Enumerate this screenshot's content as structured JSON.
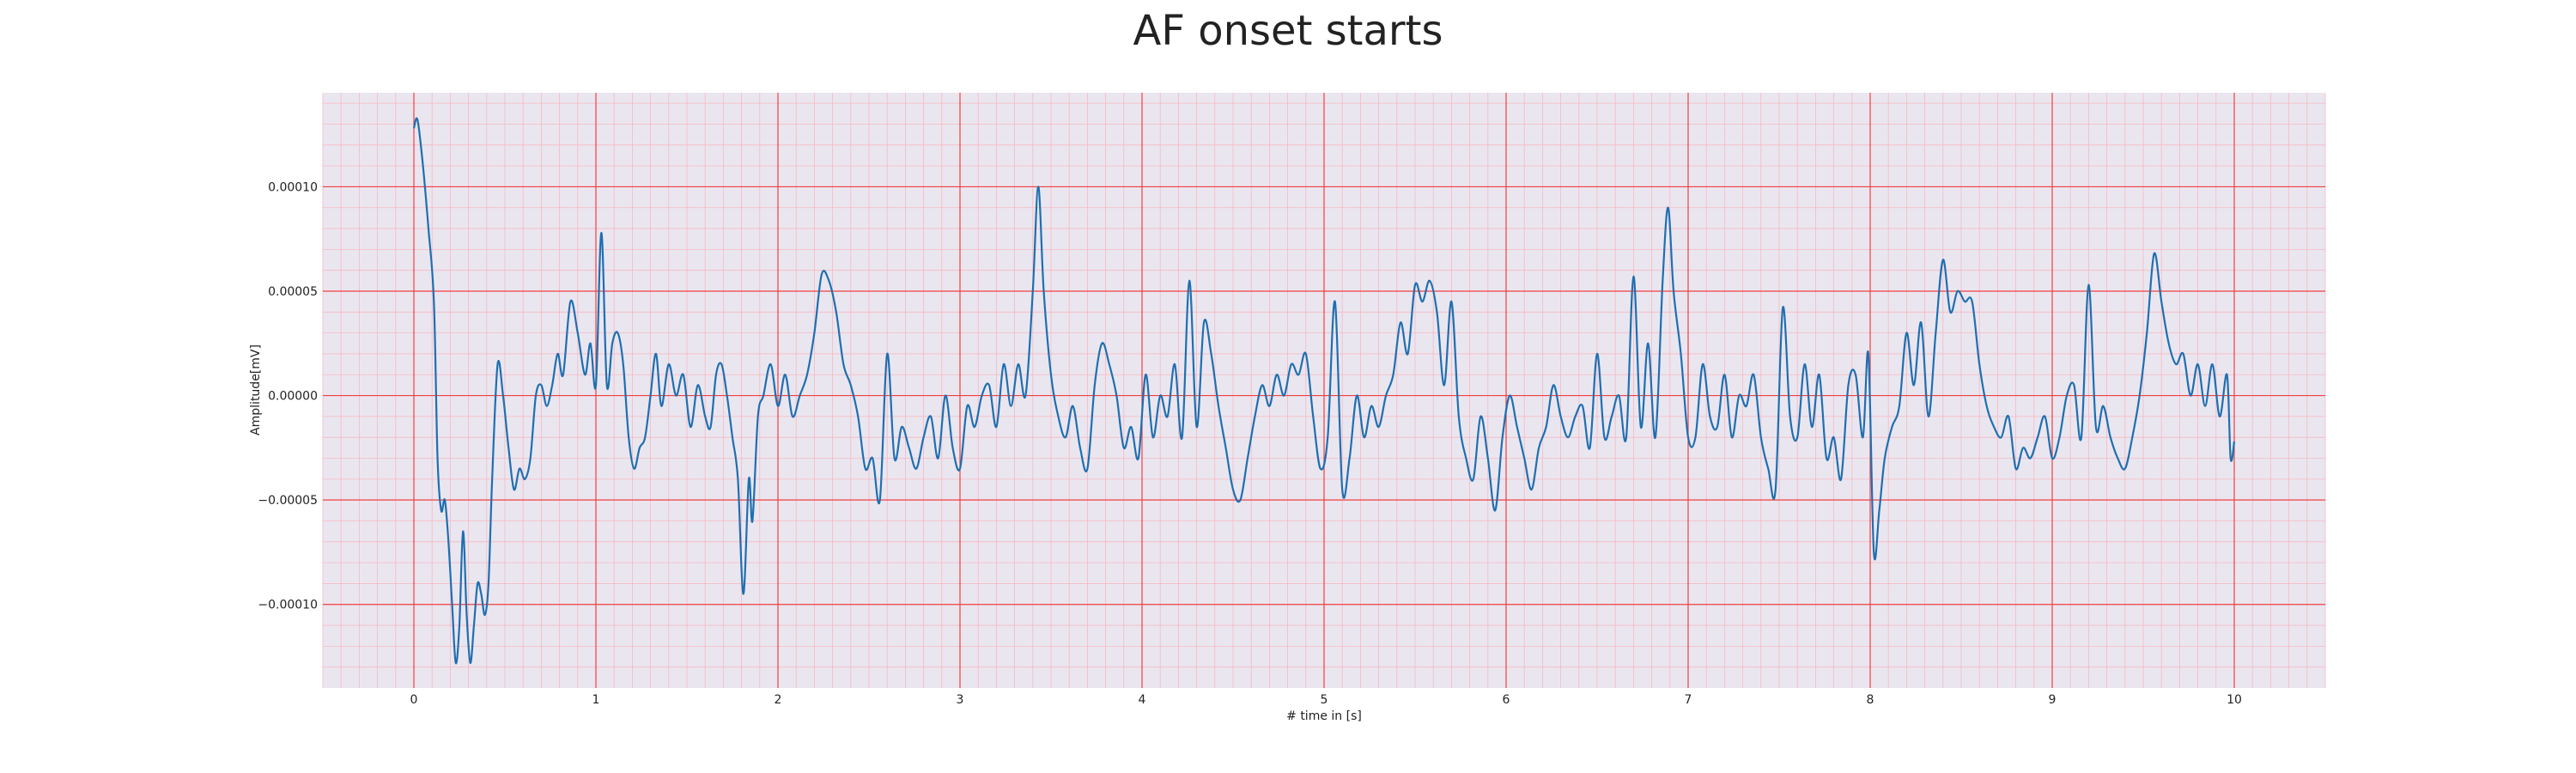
{
  "chart_data": {
    "type": "line",
    "title": "AF onset starts",
    "xlabel": "# time in [s]",
    "ylabel": "Amplitude[mV]",
    "xlim": [
      -0.5,
      10.5
    ],
    "ylim": [
      -0.00014,
      0.000145
    ],
    "x_ticks": [
      0,
      1,
      2,
      3,
      4,
      5,
      6,
      7,
      8,
      9,
      10
    ],
    "x_tick_labels": [
      "0",
      "1",
      "2",
      "3",
      "4",
      "5",
      "6",
      "7",
      "8",
      "9",
      "10"
    ],
    "y_ticks": [
      -0.0001,
      -5e-05,
      0,
      5e-05,
      0.0001
    ],
    "y_tick_labels": [
      "−0.00010",
      "−0.00005",
      "0.00000",
      "0.00005",
      "0.00010"
    ],
    "grid": true,
    "grid_color": "#f04040",
    "minor_grid_color": "#f7b8c0",
    "background_color": "#eae6f0",
    "series": [
      {
        "color": "#1f6fb0",
        "points": [
          [
            0.0,
            0.000128
          ],
          [
            0.02,
            0.000132
          ],
          [
            0.05,
            0.00011
          ],
          [
            0.08,
            8e-05
          ],
          [
            0.11,
            4.5e-05
          ],
          [
            0.13,
            -3e-05
          ],
          [
            0.15,
            -5.5e-05
          ],
          [
            0.17,
            -5e-05
          ],
          [
            0.19,
            -7e-05
          ],
          [
            0.21,
            -0.0001
          ],
          [
            0.23,
            -0.000128
          ],
          [
            0.25,
            -0.00011
          ],
          [
            0.27,
            -6.5e-05
          ],
          [
            0.29,
            -0.000105
          ],
          [
            0.31,
            -0.000128
          ],
          [
            0.33,
            -0.00011
          ],
          [
            0.35,
            -9e-05
          ],
          [
            0.37,
            -9.5e-05
          ],
          [
            0.39,
            -0.000105
          ],
          [
            0.41,
            -9e-05
          ],
          [
            0.43,
            -4e-05
          ],
          [
            0.46,
            1.5e-05
          ],
          [
            0.49,
            0.0
          ],
          [
            0.52,
            -2.5e-05
          ],
          [
            0.55,
            -4.5e-05
          ],
          [
            0.58,
            -3.5e-05
          ],
          [
            0.61,
            -4e-05
          ],
          [
            0.64,
            -3e-05
          ],
          [
            0.67,
            0.0
          ],
          [
            0.7,
            5e-06
          ],
          [
            0.73,
            -5e-06
          ],
          [
            0.76,
            5e-06
          ],
          [
            0.79,
            2e-05
          ],
          [
            0.82,
            1e-05
          ],
          [
            0.86,
            4.5e-05
          ],
          [
            0.9,
            3e-05
          ],
          [
            0.94,
            1e-05
          ],
          [
            0.97,
            2.5e-05
          ],
          [
            1.0,
            5e-06
          ],
          [
            1.03,
            7.8e-05
          ],
          [
            1.06,
            5e-06
          ],
          [
            1.09,
            2.5e-05
          ],
          [
            1.12,
            3e-05
          ],
          [
            1.15,
            1.5e-05
          ],
          [
            1.18,
            -2e-05
          ],
          [
            1.21,
            -3.5e-05
          ],
          [
            1.24,
            -2.5e-05
          ],
          [
            1.27,
            -2e-05
          ],
          [
            1.3,
            0.0
          ],
          [
            1.33,
            2e-05
          ],
          [
            1.36,
            -5e-06
          ],
          [
            1.4,
            1.5e-05
          ],
          [
            1.44,
            0.0
          ],
          [
            1.48,
            1e-05
          ],
          [
            1.52,
            -1.5e-05
          ],
          [
            1.56,
            5e-06
          ],
          [
            1.6,
            -1e-05
          ],
          [
            1.63,
            -1.5e-05
          ],
          [
            1.66,
            1e-05
          ],
          [
            1.69,
            1.5e-05
          ],
          [
            1.72,
            0.0
          ],
          [
            1.75,
            -2e-05
          ],
          [
            1.78,
            -4e-05
          ],
          [
            1.81,
            -9.5e-05
          ],
          [
            1.84,
            -4e-05
          ],
          [
            1.86,
            -6e-05
          ],
          [
            1.89,
            -1e-05
          ],
          [
            1.92,
            0.0
          ],
          [
            1.96,
            1.5e-05
          ],
          [
            2.0,
            -5e-06
          ],
          [
            2.04,
            1e-05
          ],
          [
            2.08,
            -1e-05
          ],
          [
            2.12,
            0.0
          ],
          [
            2.16,
            1e-05
          ],
          [
            2.2,
            3e-05
          ],
          [
            2.24,
            5.8e-05
          ],
          [
            2.28,
            5.5e-05
          ],
          [
            2.32,
            4e-05
          ],
          [
            2.36,
            1.5e-05
          ],
          [
            2.4,
            5e-06
          ],
          [
            2.44,
            -1e-05
          ],
          [
            2.48,
            -3.5e-05
          ],
          [
            2.52,
            -3e-05
          ],
          [
            2.56,
            -5e-05
          ],
          [
            2.6,
            2e-05
          ],
          [
            2.64,
            -3e-05
          ],
          [
            2.68,
            -1.5e-05
          ],
          [
            2.72,
            -2.5e-05
          ],
          [
            2.76,
            -3.5e-05
          ],
          [
            2.8,
            -2e-05
          ],
          [
            2.84,
            -1e-05
          ],
          [
            2.88,
            -3e-05
          ],
          [
            2.92,
            0.0
          ],
          [
            2.96,
            -2.5e-05
          ],
          [
            3.0,
            -3.5e-05
          ],
          [
            3.04,
            -5e-06
          ],
          [
            3.08,
            -1.5e-05
          ],
          [
            3.12,
            0.0
          ],
          [
            3.16,
            5e-06
          ],
          [
            3.2,
            -1.5e-05
          ],
          [
            3.24,
            1.5e-05
          ],
          [
            3.28,
            -5e-06
          ],
          [
            3.32,
            1.5e-05
          ],
          [
            3.36,
            0.0
          ],
          [
            3.4,
            5e-05
          ],
          [
            3.43,
            0.0001
          ],
          [
            3.46,
            5e-05
          ],
          [
            3.5,
            1e-05
          ],
          [
            3.54,
            -1e-05
          ],
          [
            3.58,
            -2e-05
          ],
          [
            3.62,
            -5e-06
          ],
          [
            3.66,
            -2.5e-05
          ],
          [
            3.7,
            -3.5e-05
          ],
          [
            3.74,
            5e-06
          ],
          [
            3.78,
            2.5e-05
          ],
          [
            3.82,
            1.5e-05
          ],
          [
            3.86,
            0.0
          ],
          [
            3.9,
            -2.5e-05
          ],
          [
            3.94,
            -1.5e-05
          ],
          [
            3.98,
            -3e-05
          ],
          [
            4.02,
            1e-05
          ],
          [
            4.06,
            -2e-05
          ],
          [
            4.1,
            0.0
          ],
          [
            4.14,
            -1e-05
          ],
          [
            4.18,
            1.5e-05
          ],
          [
            4.22,
            -2e-05
          ],
          [
            4.26,
            5.5e-05
          ],
          [
            4.3,
            -1.5e-05
          ],
          [
            4.34,
            3.5e-05
          ],
          [
            4.38,
            2e-05
          ],
          [
            4.42,
            -5e-06
          ],
          [
            4.46,
            -2.5e-05
          ],
          [
            4.5,
            -4.5e-05
          ],
          [
            4.54,
            -5e-05
          ],
          [
            4.58,
            -3e-05
          ],
          [
            4.62,
            -1e-05
          ],
          [
            4.66,
            5e-06
          ],
          [
            4.7,
            -5e-06
          ],
          [
            4.74,
            1e-05
          ],
          [
            4.78,
            0.0
          ],
          [
            4.82,
            1.5e-05
          ],
          [
            4.86,
            1e-05
          ],
          [
            4.9,
            2e-05
          ],
          [
            4.94,
            -1e-05
          ],
          [
            4.98,
            -3.5e-05
          ],
          [
            5.02,
            -2e-05
          ],
          [
            5.06,
            4.5e-05
          ],
          [
            5.1,
            -4.5e-05
          ],
          [
            5.14,
            -3e-05
          ],
          [
            5.18,
            0.0
          ],
          [
            5.22,
            -2e-05
          ],
          [
            5.26,
            -5e-06
          ],
          [
            5.3,
            -1.5e-05
          ],
          [
            5.34,
            0.0
          ],
          [
            5.38,
            1e-05
          ],
          [
            5.42,
            3.5e-05
          ],
          [
            5.46,
            2e-05
          ],
          [
            5.5,
            5.3e-05
          ],
          [
            5.54,
            4.5e-05
          ],
          [
            5.58,
            5.5e-05
          ],
          [
            5.62,
            4e-05
          ],
          [
            5.66,
            5e-06
          ],
          [
            5.7,
            4.5e-05
          ],
          [
            5.74,
            -1e-05
          ],
          [
            5.78,
            -3e-05
          ],
          [
            5.82,
            -4e-05
          ],
          [
            5.86,
            -1e-05
          ],
          [
            5.9,
            -3e-05
          ],
          [
            5.94,
            -5.5e-05
          ],
          [
            5.98,
            -2e-05
          ],
          [
            6.02,
            0.0
          ],
          [
            6.06,
            -1.5e-05
          ],
          [
            6.1,
            -3e-05
          ],
          [
            6.14,
            -4.5e-05
          ],
          [
            6.18,
            -2.5e-05
          ],
          [
            6.22,
            -1.5e-05
          ],
          [
            6.26,
            5e-06
          ],
          [
            6.3,
            -1e-05
          ],
          [
            6.34,
            -2e-05
          ],
          [
            6.38,
            -1e-05
          ],
          [
            6.42,
            -5e-06
          ],
          [
            6.46,
            -2.5e-05
          ],
          [
            6.5,
            2e-05
          ],
          [
            6.54,
            -2e-05
          ],
          [
            6.58,
            -1e-05
          ],
          [
            6.62,
            0.0
          ],
          [
            6.66,
            -2e-05
          ],
          [
            6.7,
            5.7e-05
          ],
          [
            6.74,
            -1.5e-05
          ],
          [
            6.78,
            2.5e-05
          ],
          [
            6.82,
            -2e-05
          ],
          [
            6.86,
            5.5e-05
          ],
          [
            6.89,
            9e-05
          ],
          [
            6.92,
            5e-05
          ],
          [
            6.96,
            2e-05
          ],
          [
            7.0,
            -2e-05
          ],
          [
            7.04,
            -2e-05
          ],
          [
            7.08,
            1.5e-05
          ],
          [
            7.12,
            -1e-05
          ],
          [
            7.16,
            -1.5e-05
          ],
          [
            7.2,
            1e-05
          ],
          [
            7.24,
            -2e-05
          ],
          [
            7.28,
            0.0
          ],
          [
            7.32,
            -5e-06
          ],
          [
            7.36,
            1e-05
          ],
          [
            7.4,
            -2e-05
          ],
          [
            7.44,
            -3.5e-05
          ],
          [
            7.48,
            -4.5e-05
          ],
          [
            7.52,
            4.2e-05
          ],
          [
            7.56,
            -1e-05
          ],
          [
            7.6,
            -2e-05
          ],
          [
            7.64,
            1.5e-05
          ],
          [
            7.68,
            -1.5e-05
          ],
          [
            7.72,
            1e-05
          ],
          [
            7.76,
            -3e-05
          ],
          [
            7.8,
            -2e-05
          ],
          [
            7.84,
            -4e-05
          ],
          [
            7.88,
            5e-06
          ],
          [
            7.92,
            1e-05
          ],
          [
            7.96,
            -2e-05
          ],
          [
            7.99,
            2e-05
          ],
          [
            8.02,
            -7.5e-05
          ],
          [
            8.05,
            -5.5e-05
          ],
          [
            8.08,
            -3e-05
          ],
          [
            8.12,
            -1.5e-05
          ],
          [
            8.16,
            -5e-06
          ],
          [
            8.2,
            3e-05
          ],
          [
            8.24,
            5e-06
          ],
          [
            8.28,
            3.5e-05
          ],
          [
            8.32,
            -1e-05
          ],
          [
            8.36,
            3e-05
          ],
          [
            8.4,
            6.5e-05
          ],
          [
            8.44,
            4e-05
          ],
          [
            8.48,
            5e-05
          ],
          [
            8.52,
            4.5e-05
          ],
          [
            8.56,
            4.5e-05
          ],
          [
            8.6,
            1.5e-05
          ],
          [
            8.64,
            -5e-06
          ],
          [
            8.68,
            -1.5e-05
          ],
          [
            8.72,
            -2e-05
          ],
          [
            8.76,
            -1e-05
          ],
          [
            8.8,
            -3.5e-05
          ],
          [
            8.84,
            -2.5e-05
          ],
          [
            8.88,
            -3e-05
          ],
          [
            8.92,
            -2e-05
          ],
          [
            8.96,
            -1e-05
          ],
          [
            9.0,
            -3e-05
          ],
          [
            9.04,
            -2e-05
          ],
          [
            9.08,
            0.0
          ],
          [
            9.12,
            5e-06
          ],
          [
            9.16,
            -2e-05
          ],
          [
            9.2,
            5.3e-05
          ],
          [
            9.24,
            -1.5e-05
          ],
          [
            9.28,
            -5e-06
          ],
          [
            9.32,
            -2e-05
          ],
          [
            9.36,
            -3e-05
          ],
          [
            9.4,
            -3.5e-05
          ],
          [
            9.44,
            -2e-05
          ],
          [
            9.48,
            0.0
          ],
          [
            9.52,
            3e-05
          ],
          [
            9.56,
            6.8e-05
          ],
          [
            9.6,
            4.5e-05
          ],
          [
            9.64,
            2.5e-05
          ],
          [
            9.68,
            1.5e-05
          ],
          [
            9.72,
            2e-05
          ],
          [
            9.76,
            0.0
          ],
          [
            9.8,
            1.5e-05
          ],
          [
            9.84,
            -5e-06
          ],
          [
            9.88,
            1.5e-05
          ],
          [
            9.92,
            -1e-05
          ],
          [
            9.96,
            1e-05
          ],
          [
            9.98,
            -3e-05
          ],
          [
            10.0,
            -2.2e-05
          ]
        ]
      }
    ]
  }
}
